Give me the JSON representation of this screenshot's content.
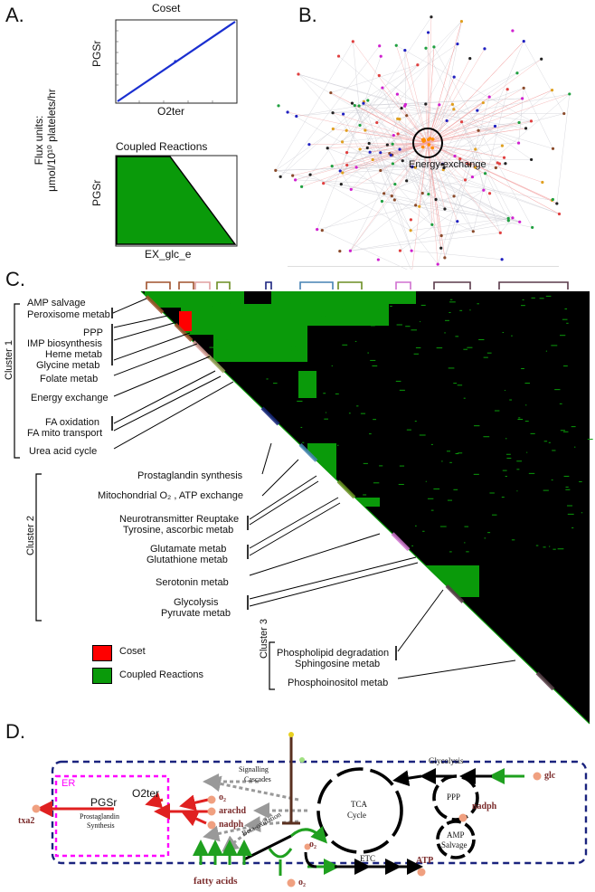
{
  "panels": {
    "a": "A.",
    "b": "B.",
    "c": "C.",
    "d": "D."
  },
  "panel_a": {
    "flux_units_line1": "Flux units:",
    "flux_units_line2": "μmol/10¹⁰ platelets/hr",
    "coset_title": "Coset",
    "coset_ylabel": "PGSr",
    "coset_xlabel": "O2ter",
    "coupled_title": "Coupled Reactions",
    "coupled_ylabel": "PGSr",
    "coupled_xlabel": "EX_glc_e",
    "coset_line_color": "#1a2fd0",
    "coupled_fill_color": "#0a9a0a"
  },
  "panel_b": {
    "label": "Energy exchange",
    "edge_color": "#f08080",
    "highlight_color": "#ff8c00"
  },
  "panel_c": {
    "cluster1": "Cluster 1",
    "cluster2": "Cluster 2",
    "cluster3": "Cluster 3",
    "labels1": {
      "amp": "AMP salvage",
      "perox": "Peroxisome metab",
      "ppp": "PPP",
      "imp": "IMP biosynthesis",
      "heme": "Heme metab",
      "glycine": "Glycine metab",
      "folate": "Folate metab",
      "energy": "Energy exchange",
      "faox": "FA oxidation",
      "famito": "FA mito transport",
      "urea": "Urea acid cycle"
    },
    "labels2": {
      "prosta": "Prostaglandin synthesis",
      "mito": "Mitochondrial O₂ , ATP exchange",
      "neuro": "Neurotransmitter Reuptake",
      "tyro": "Tyrosine, ascorbic metab",
      "gluta": "Glutamate metab",
      "gluth": "Glutathione metab",
      "sero": "Serotonin metab",
      "glyco": "Glycolysis",
      "pyru": "Pyruvate metab"
    },
    "labels3": {
      "phosd": "Phospholipid degradation",
      "sphingo": "Sphingosine metab",
      "phosi": "Phosphoinositol metab"
    },
    "legend": {
      "coset": "Coset",
      "coupled": "Coupled Reactions",
      "coset_color": "#ff0000",
      "coupled_color": "#0a9a0a"
    }
  },
  "panel_d": {
    "er": "ER",
    "pgsr": "PGSr",
    "o2ter": "O2ter",
    "prosta1": "Prostaglandin",
    "prosta2": "Synthesis",
    "txa2": "txa2",
    "o2": "o₂",
    "arachd": "arachd",
    "nadph": "nadph",
    "signal1": "Signalling",
    "signal2": "Cascades",
    "tca1": "TCA",
    "tca2": "Cycle",
    "glycolysis": "Glycolysis",
    "ppp": "PPP",
    "nadph2": "nadph",
    "amp1": "AMP",
    "amp2": "Salvage",
    "glc": "glc",
    "beta": "Beta-oxidation",
    "o2b": "o₂",
    "etc": "ETC",
    "atp": "ATP",
    "fatty": "fatty acids",
    "o2c": "o₂",
    "er_color": "#ff00ff",
    "border_color": "#1a237e",
    "red": "#e02020",
    "green": "#1fa01f",
    "metabolite_color": "#7a2a2a",
    "dot_color": "#f0a080"
  }
}
